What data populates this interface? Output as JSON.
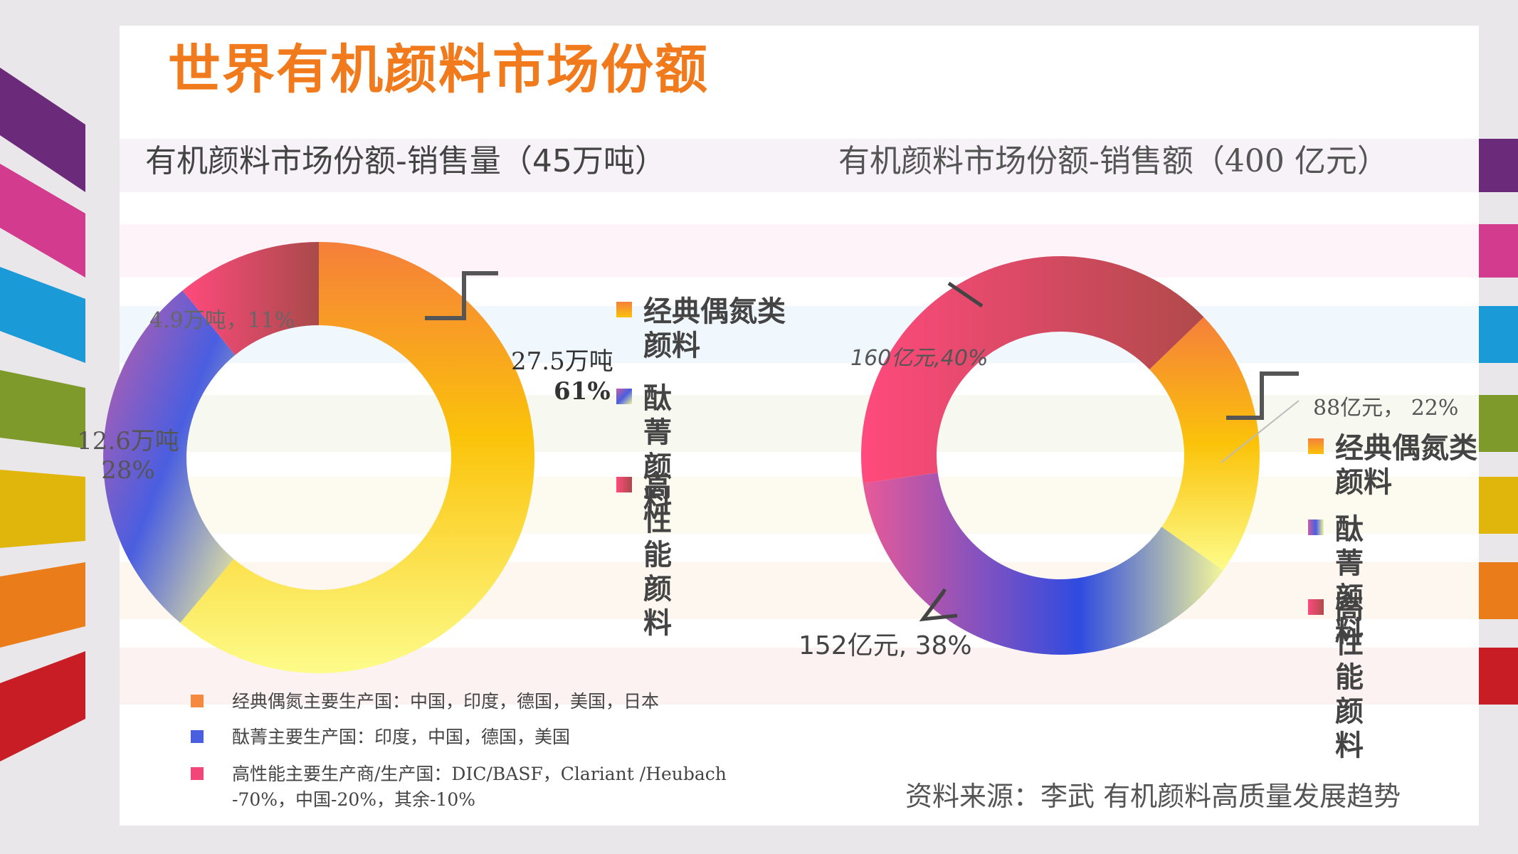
{
  "title": "世界有机颜料市场份额",
  "source": "资料来源：李武 有机颜料高质量发展趋势",
  "colors": {
    "accent_title": "#f07a1c",
    "classic_azo": "#f5893f",
    "phthalocyanine": "#4a5ee0",
    "high_performance": "#f2457a"
  },
  "notes": [
    {
      "text": "经典偶氮主要生产国：中国，印度，德国，美国，日本",
      "color": "#f5893f"
    },
    {
      "text": "酞菁主要生产国：印度，中国，德国，美国",
      "color": "#4a5ee0"
    },
    {
      "text": "高性能主要生产商/生产国：DIC/BASF，Clariant /Heubach -70%，中国-20%，其余-10%",
      "color": "#f2457a"
    }
  ],
  "chart_data": [
    {
      "type": "pie",
      "title": "有机颜料市场份额-销售量（45万吨）",
      "categories": [
        "经典偶氮类颜料",
        "酞菁颜料",
        "高性能颜料"
      ],
      "values": [
        27.5,
        12.6,
        4.9
      ],
      "percent": [
        61,
        28,
        11
      ],
      "unit": "万吨",
      "data_labels": [
        {
          "line1": "27.5万吨",
          "line2": "61%"
        },
        {
          "line1": "12.6万吨",
          "line2": "28%"
        },
        {
          "line1": "4.9万吨，11%",
          "line2": ""
        }
      ],
      "legend": [
        "经典偶氮类颜料",
        "酞菁颜料",
        "高性能颜料"
      ]
    },
    {
      "type": "pie",
      "title": "有机颜料市场份额-销售额（400 亿元）",
      "categories": [
        "经典偶氮类颜料",
        "酞菁颜料",
        "高性能颜料"
      ],
      "values": [
        88,
        152,
        160
      ],
      "percent": [
        22,
        38,
        40
      ],
      "unit": "亿元",
      "data_labels": [
        {
          "line1": "88亿元， 22%"
        },
        {
          "line1": "152亿元, 38%"
        },
        {
          "line1": "160亿元,40%"
        }
      ],
      "legend": [
        "经典偶氮类颜料",
        "酞菁颜料",
        "高性能颜料"
      ]
    }
  ]
}
